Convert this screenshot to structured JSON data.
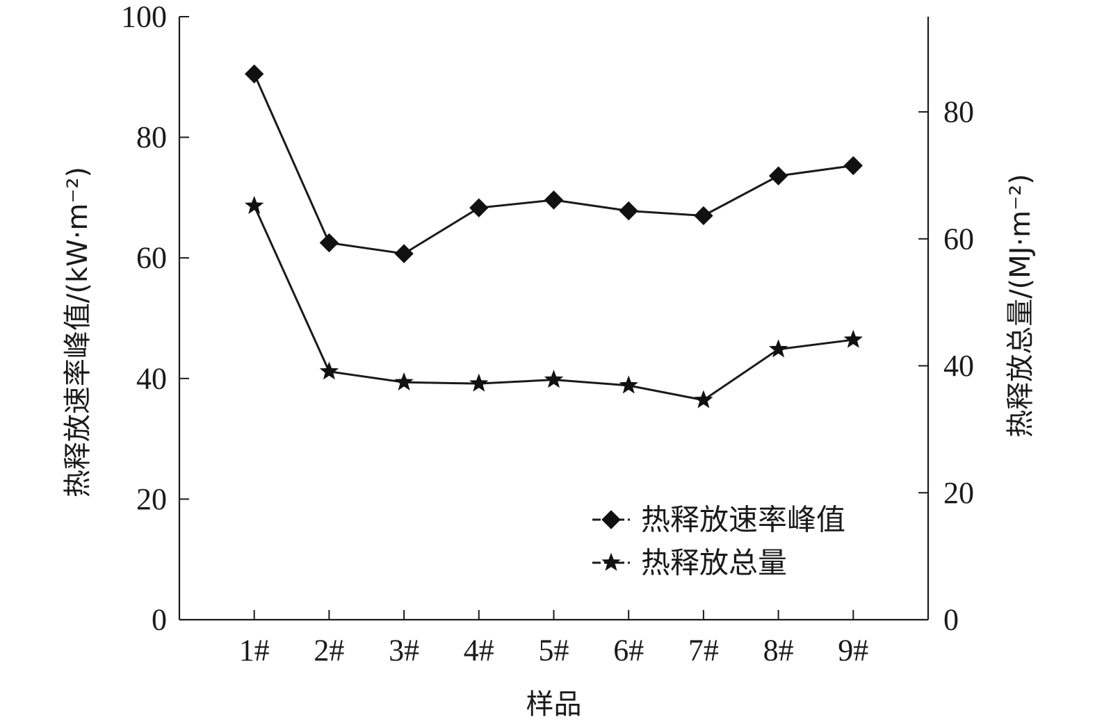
{
  "chart_data": {
    "type": "line",
    "categories": [
      "1#",
      "2#",
      "3#",
      "4#",
      "5#",
      "6#",
      "7#",
      "8#",
      "9#"
    ],
    "xlabel": "样品",
    "ylabel_left": "热释放速率峰值/(kW·m⁻²)",
    "ylabel_right": "热释放总量/(MJ·m⁻²)",
    "ylim_left": [
      0,
      100
    ],
    "ylim_right": [
      0,
      95
    ],
    "yticks_left": [
      "0",
      "20",
      "40",
      "60",
      "80",
      "100"
    ],
    "yticks_right": [
      "0",
      "20",
      "40",
      "60",
      "80"
    ],
    "grid": false,
    "legend_position": "bottom-right",
    "series": [
      {
        "name": "热释放速率峰值",
        "axis": "left",
        "marker": "diamond",
        "values": [
          90.5,
          62.5,
          60.7,
          68.3,
          69.6,
          67.8,
          67.0,
          73.6,
          75.3
        ]
      },
      {
        "name": "热释放总量",
        "axis": "right",
        "marker": "star",
        "values": [
          65.2,
          39.1,
          37.4,
          37.2,
          37.8,
          36.9,
          34.6,
          42.6,
          44.1
        ]
      }
    ],
    "colors": {
      "line": "#1a1a1a",
      "marker": "#111111",
      "axis": "#1a1a1a"
    }
  }
}
